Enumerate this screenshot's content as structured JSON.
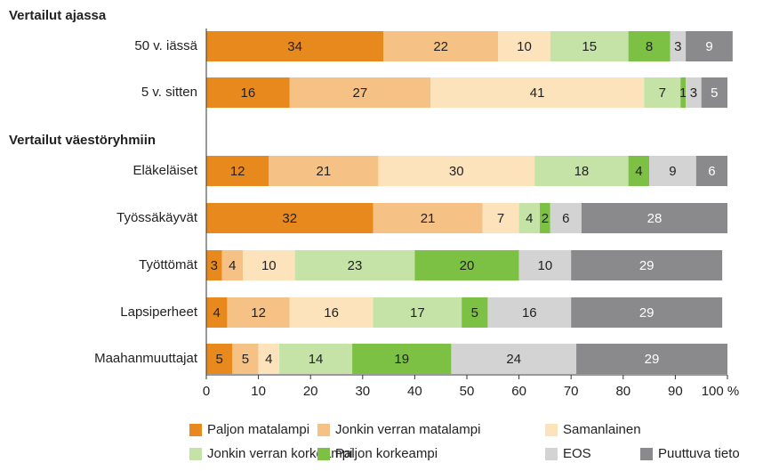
{
  "chart_data": {
    "type": "stacked-bar-horizontal",
    "group_labels": [
      "Vertailut ajassa",
      "Vertailut väestöryhmiin"
    ],
    "categories": [
      "50 v. iässä",
      "5 v. sitten",
      "Eläkeläiset",
      "Työssäkäyvät",
      "Työttömät",
      "Lapsiperheet",
      "Maahanmuuttajat"
    ],
    "series": [
      {
        "name": "Paljon matalampi",
        "color": "#e8891d",
        "values": [
          34,
          16,
          12,
          32,
          3,
          4,
          5
        ]
      },
      {
        "name": "Jonkin verran matalampi",
        "color": "#f5c185",
        "values": [
          22,
          27,
          21,
          21,
          4,
          12,
          5
        ]
      },
      {
        "name": "Samanlainen",
        "color": "#fde3bb",
        "values": [
          10,
          41,
          30,
          7,
          10,
          16,
          4
        ]
      },
      {
        "name": "Jonkin verran korkeampi",
        "color": "#c5e3a6",
        "values": [
          15,
          7,
          18,
          4,
          23,
          17,
          14
        ]
      },
      {
        "name": "Paljon korkeampi",
        "color": "#7cc143",
        "values": [
          8,
          1,
          4,
          2,
          20,
          5,
          19
        ]
      },
      {
        "name": "EOS",
        "color": "#d3d3d3",
        "values": [
          3,
          3,
          9,
          6,
          10,
          16,
          24
        ]
      },
      {
        "name": "Puuttuva tieto",
        "color": "#8a8a8c",
        "values": [
          9,
          5,
          6,
          28,
          29,
          29,
          29
        ]
      }
    ],
    "xlim": [
      0,
      100
    ],
    "xticks": [
      0,
      10,
      20,
      30,
      40,
      50,
      60,
      70,
      80,
      90,
      {
        "value": 100,
        "label": "100 %"
      }
    ]
  }
}
